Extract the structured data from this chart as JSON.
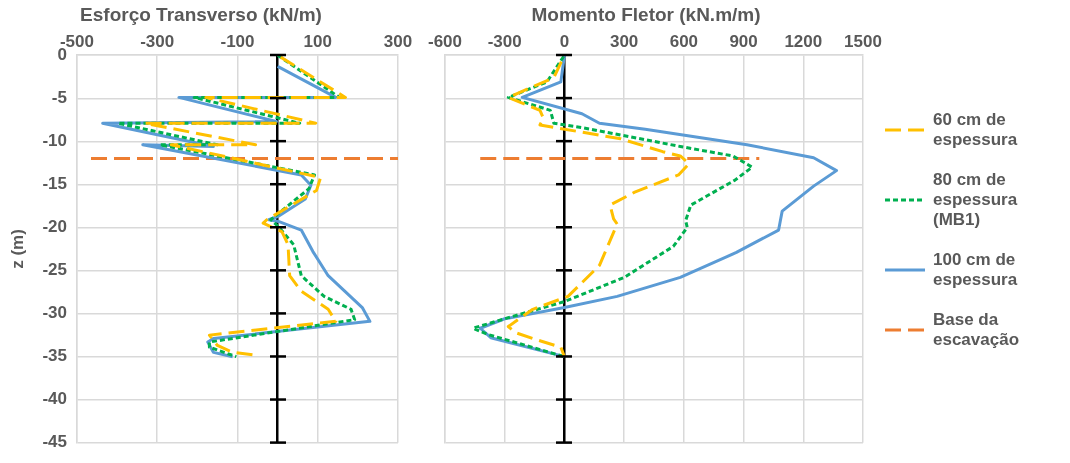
{
  "chart_data": [
    {
      "type": "line",
      "title": "Esforço Transverso (kN/m)",
      "ylabel": "z (m)",
      "xlim": [
        -500,
        300
      ],
      "xticks": [
        -500,
        -300,
        -100,
        100,
        300
      ],
      "ylim": [
        -45,
        0
      ],
      "yticks": [
        -45,
        -40,
        -35,
        -30,
        -25,
        -20,
        -15,
        -10,
        -5,
        0
      ],
      "grid": true,
      "series": [
        {
          "color": "#ffc000",
          "line_style": "dashed",
          "x": [
            0,
            169,
            -179,
            95,
            -331,
            -55,
            -265,
            107,
            97,
            -27,
            -36,
            11,
            26,
            30,
            59,
            126,
            145,
            -170,
            -150,
            -112,
            -60
          ],
          "values": [
            0,
            -4.9,
            -4.9,
            -7.9,
            -7.9,
            -10.4,
            -10.4,
            -14.2,
            -15.7,
            -19.1,
            -19.5,
            -20.5,
            -22,
            -25.6,
            -27.4,
            -29.5,
            -30.9,
            -32.5,
            -33.7,
            -34.5,
            -34.8
          ]
        },
        {
          "color": "#00b050",
          "line_style": "dotted",
          "x": [
            0,
            154,
            -208,
            55,
            -398,
            -150,
            -293,
            92,
            78,
            -17,
            2,
            40,
            59,
            116,
            183,
            192,
            -170,
            -170,
            -103
          ],
          "values": [
            0,
            -4.9,
            -4.9,
            -7.9,
            -7.9,
            -10.4,
            -10.4,
            -13.9,
            -15.5,
            -19.1,
            -19.9,
            -22,
            -25.6,
            -28,
            -29.5,
            -30.7,
            -33.3,
            -33.9,
            -35
          ]
        },
        {
          "color": "#5b9bd5",
          "line_style": "solid",
          "x": [
            0,
            145,
            -246,
            -3,
            -436,
            -160,
            -336,
            59,
            83,
            69,
            2,
            -22,
            2,
            59,
            88,
            126,
            211,
            230,
            -160,
            -174,
            -160,
            -112
          ],
          "values": [
            -1.3,
            -4.9,
            -4.9,
            -7.7,
            -7.9,
            -10.6,
            -10.4,
            -13.9,
            -15.1,
            -16.7,
            -18.7,
            -19.1,
            -19.3,
            -20.3,
            -22.8,
            -25.6,
            -29.3,
            -30.9,
            -32.9,
            -33.3,
            -34.5,
            -35
          ]
        },
        {
          "color": "#ed7d31",
          "line_style": "dashed",
          "x": [
            -465,
            300
          ],
          "values": [
            -12,
            -12
          ]
        }
      ]
    },
    {
      "type": "line",
      "title": "Momento Fletor (kN.m/m)",
      "xlim": [
        -600,
        1500
      ],
      "xticks": [
        -600,
        -300,
        0,
        300,
        600,
        900,
        1200,
        1500
      ],
      "ylim": [
        -45,
        0
      ],
      "yticks": [
        -45,
        -40,
        -35,
        -30,
        -25,
        -20,
        -15,
        -10,
        -5,
        0
      ],
      "tick_labels": "x",
      "grid": true,
      "legend": "right",
      "series": [
        {
          "name": "60 cm de espessura",
          "color": "#ffc000",
          "line_style": "dashed",
          "x": [
            0,
            -53,
            -282,
            -123,
            -106,
            -123,
            282,
            494,
            582,
            626,
            573,
            353,
            229,
            247,
            265,
            176,
            18,
            -159,
            -282,
            -247,
            -159,
            -18,
            0
          ],
          "values": [
            0,
            -2.6,
            -4.9,
            -6.4,
            -7.3,
            -8.1,
            -9.7,
            -11.2,
            -11.7,
            -12.6,
            -13.9,
            -15.9,
            -17.4,
            -19,
            -19.6,
            -24.4,
            -28,
            -29.5,
            -31.5,
            -32.2,
            -32.9,
            -33.9,
            -35
          ]
        },
        {
          "name": "80 cm de espessura (MB1)",
          "color": "#00b050",
          "line_style": "dotted",
          "x": [
            0,
            -88,
            -282,
            -71,
            -53,
            88,
            582,
            847,
            943,
            857,
            635,
            609,
            617,
            547,
            300,
            0,
            -300,
            -459,
            -388,
            0
          ],
          "values": [
            0,
            -3.1,
            -4.9,
            -6.4,
            -7.9,
            -8.4,
            -10.6,
            -11.7,
            -13,
            -14.5,
            -17.4,
            -19.2,
            -20,
            -22.2,
            -25.8,
            -28.6,
            -30.6,
            -31.7,
            -32.4,
            -35
          ]
        },
        {
          "name": "100 cm de espessura",
          "color": "#5b9bd5",
          "line_style": "solid",
          "x": [
            0,
            -18,
            -212,
            88,
            176,
            406,
            917,
            1252,
            1367,
            1252,
            1094,
            1085,
            1076,
            864,
            582,
            265,
            0,
            -300,
            -423,
            -370,
            0
          ],
          "values": [
            0,
            -3.1,
            -4.9,
            -6.8,
            -7.9,
            -8.6,
            -10.4,
            -11.9,
            -13.4,
            -15.2,
            -18.1,
            -19.2,
            -20.3,
            -22.9,
            -25.8,
            -28,
            -29.3,
            -30.6,
            -31.7,
            -32.8,
            -35
          ]
        },
        {
          "name": "Base da escavação",
          "color": "#ed7d31",
          "line_style": "dashed",
          "x": [
            -423,
            979
          ],
          "values": [
            -12,
            -12
          ]
        }
      ]
    }
  ]
}
